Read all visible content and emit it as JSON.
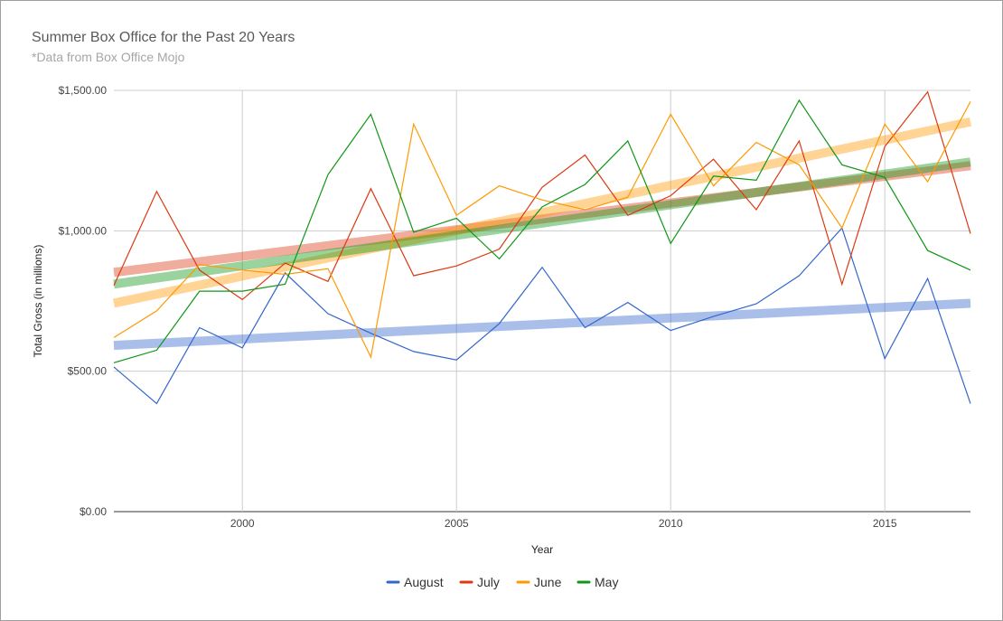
{
  "chart_data": {
    "type": "line",
    "title": "Summer Box Office for the Past 20 Years",
    "subtitle": "*Data from Box Office Mojo",
    "xlabel": "Year",
    "ylabel": "Total Gross (in millions)",
    "xlim": [
      1997,
      2017
    ],
    "ylim": [
      0,
      1500
    ],
    "grid": true,
    "legend_position": "bottom",
    "x_ticks": [
      2000,
      2005,
      2010,
      2015
    ],
    "y_ticks": [
      "$0.00",
      "$500.00",
      "$1,000.00",
      "$1,500.00"
    ],
    "y_tick_values": [
      0,
      500,
      1000,
      1500
    ],
    "x": [
      1997,
      1998,
      1999,
      2000,
      2001,
      2002,
      2003,
      2004,
      2005,
      2006,
      2007,
      2008,
      2009,
      2010,
      2011,
      2012,
      2013,
      2014,
      2015,
      2016,
      2017
    ],
    "series": [
      {
        "name": "August",
        "color": "#3366cc",
        "trend_color": "#a8bbee",
        "values": [
          515,
          385,
          655,
          583,
          850,
          705,
          635,
          570,
          540,
          670,
          870,
          655,
          745,
          645,
          695,
          740,
          840,
          1010,
          545,
          830,
          385
        ]
      },
      {
        "name": "July",
        "color": "#dc3912",
        "trend_color": "#e8a296",
        "values": [
          805,
          1140,
          860,
          755,
          885,
          820,
          1150,
          840,
          875,
          935,
          1155,
          1270,
          1055,
          1125,
          1255,
          1075,
          1320,
          810,
          1300,
          1495,
          990
        ]
      },
      {
        "name": "June",
        "color": "#ff9900",
        "trend_color": "#ffd29a",
        "values": [
          620,
          715,
          880,
          860,
          845,
          865,
          550,
          1380,
          1055,
          1160,
          1110,
          1075,
          1120,
          1415,
          1160,
          1315,
          1235,
          1010,
          1380,
          1175,
          1460
        ]
      },
      {
        "name": "May",
        "color": "#109618",
        "trend_color": "#94cd94",
        "values": [
          530,
          575,
          785,
          785,
          810,
          1200,
          1415,
          995,
          1045,
          900,
          1085,
          1165,
          1320,
          955,
          1195,
          1180,
          1465,
          1235,
          1190,
          930,
          860
        ]
      }
    ],
    "trendlines": [
      {
        "series": "August",
        "start": [
          1997,
          592
        ],
        "end": [
          2017,
          742
        ]
      },
      {
        "series": "July",
        "start": [
          1997,
          852
        ],
        "end": [
          2017,
          1232
        ]
      },
      {
        "series": "June",
        "start": [
          1997,
          742
        ],
        "end": [
          2017,
          1388
        ]
      },
      {
        "series": "May",
        "start": [
          1997,
          810
        ],
        "end": [
          2017,
          1245
        ]
      }
    ]
  }
}
